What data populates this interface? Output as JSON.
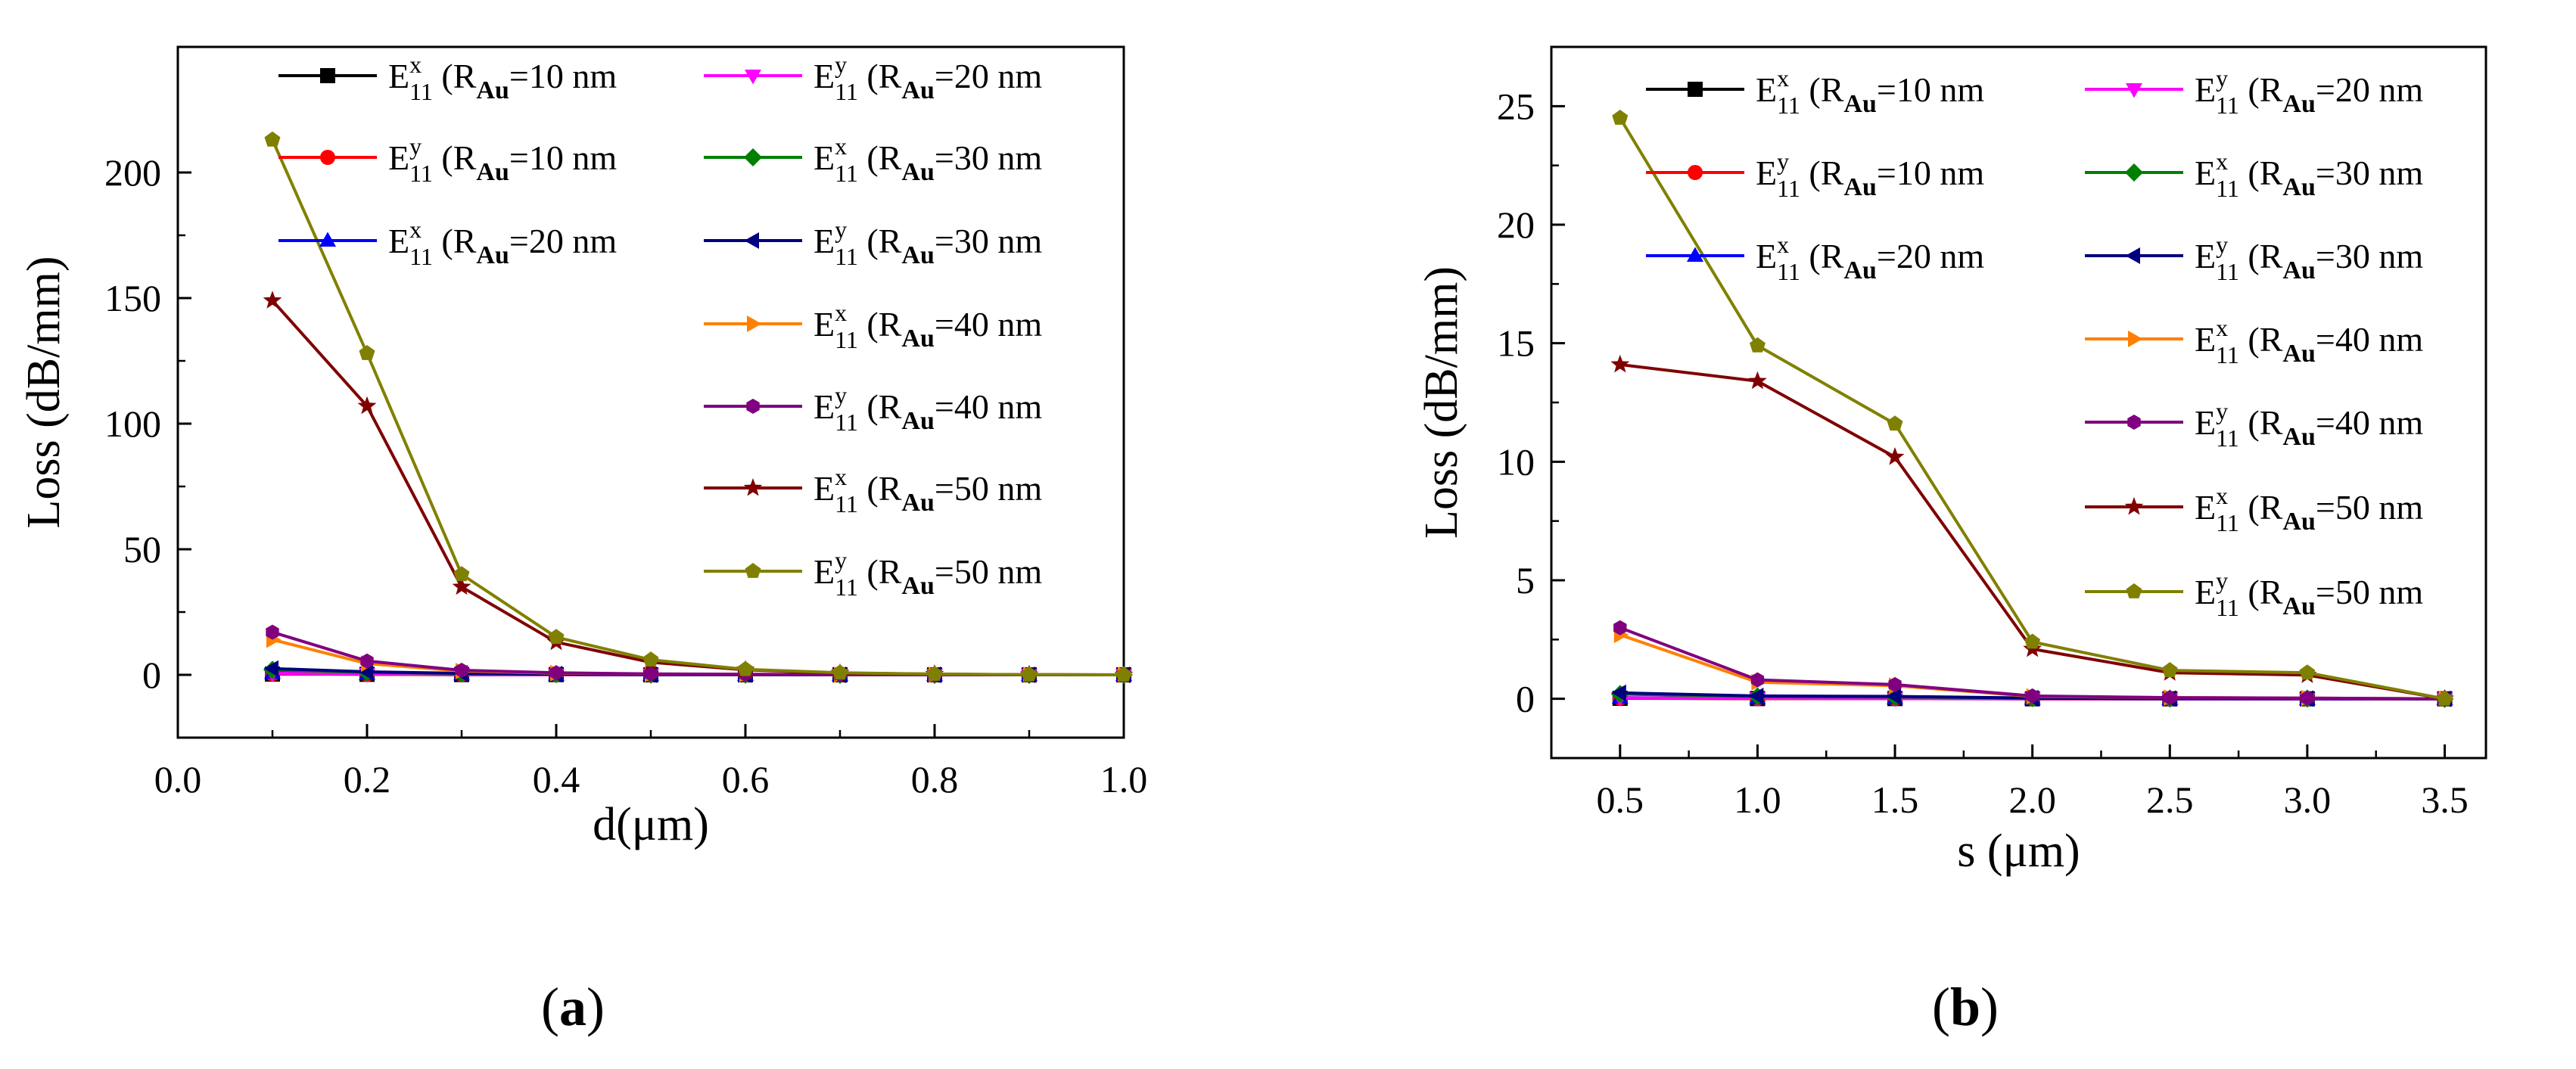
{
  "legend_entries": [
    {
      "mode": "E",
      "sub": "11",
      "pol": "x",
      "r_label": "R",
      "r_sub": "Au",
      "r_value": "=10 nm",
      "color": "#000000",
      "marker": "square"
    },
    {
      "mode": "E",
      "sub": "11",
      "pol": "y",
      "r_label": "R",
      "r_sub": "Au",
      "r_value": "=10 nm",
      "color": "#ff0000",
      "marker": "circle"
    },
    {
      "mode": "E",
      "sub": "11",
      "pol": "x",
      "r_label": "R",
      "r_sub": "Au",
      "r_value": "=20 nm",
      "color": "#0000ff",
      "marker": "triangle-up"
    },
    {
      "mode": "E",
      "sub": "11",
      "pol": "y",
      "r_label": "R",
      "r_sub": "Au",
      "r_value": "=20 nm",
      "color": "#ff00ff",
      "marker": "triangle-down"
    },
    {
      "mode": "E",
      "sub": "11",
      "pol": "x",
      "r_label": "R",
      "r_sub": "Au",
      "r_value": "=30 nm",
      "color": "#008000",
      "marker": "diamond"
    },
    {
      "mode": "E",
      "sub": "11",
      "pol": "y",
      "r_label": "R",
      "r_sub": "Au",
      "r_value": "=30 nm",
      "color": "#000080",
      "marker": "triangle-left"
    },
    {
      "mode": "E",
      "sub": "11",
      "pol": "x",
      "r_label": "R",
      "r_sub": "Au",
      "r_value": "=40 nm",
      "color": "#ff8000",
      "marker": "triangle-right"
    },
    {
      "mode": "E",
      "sub": "11",
      "pol": "y",
      "r_label": "R",
      "r_sub": "Au",
      "r_value": "=40 nm",
      "color": "#800080",
      "marker": "hexagon"
    },
    {
      "mode": "E",
      "sub": "11",
      "pol": "x",
      "r_label": "R",
      "r_sub": "Au",
      "r_value": "=50 nm",
      "color": "#800000",
      "marker": "star"
    },
    {
      "mode": "E",
      "sub": "11",
      "pol": "y",
      "r_label": "R",
      "r_sub": "Au",
      "r_value": "=50 nm",
      "color": "#808000",
      "marker": "pentagon"
    }
  ],
  "panel_labels": {
    "a": "a",
    "b": "b"
  },
  "chart_data": [
    {
      "type": "line",
      "panel": "a",
      "xlabel_main": "d(",
      "xlabel_unit": "μm",
      "xlabel_close": ")",
      "ylabel": "Loss (dB/mm)",
      "xlim": [
        0.0,
        1.0
      ],
      "ylim": [
        -25,
        250
      ],
      "xticks": [
        0.0,
        0.2,
        0.4,
        0.6,
        0.8,
        1.0
      ],
      "xtick_labels": [
        "0.0",
        "0.2",
        "0.4",
        "0.6",
        "0.8",
        "1.0"
      ],
      "yticks": [
        0,
        50,
        100,
        150,
        200
      ],
      "ytick_labels": [
        "0",
        "50",
        "100",
        "150",
        "200"
      ],
      "x": [
        0.1,
        0.2,
        0.3,
        0.4,
        0.5,
        0.6,
        0.7,
        0.8,
        0.9,
        1.0
      ],
      "series": [
        {
          "name": "Ex11 (RAu=10 nm)",
          "values": [
            0.3,
            0.2,
            0.1,
            0.1,
            0,
            0,
            0,
            0,
            0,
            0
          ]
        },
        {
          "name": "Ey11 (RAu=10 nm)",
          "values": [
            0.4,
            0.2,
            0.1,
            0.1,
            0,
            0,
            0,
            0,
            0,
            0
          ]
        },
        {
          "name": "Ex11 (RAu=20 nm)",
          "values": [
            0.8,
            0.4,
            0.2,
            0.1,
            0.1,
            0,
            0,
            0,
            0,
            0
          ]
        },
        {
          "name": "Ey11 (RAu=20 nm)",
          "values": [
            0.6,
            0.3,
            0.2,
            0.1,
            0.1,
            0,
            0,
            0,
            0,
            0
          ]
        },
        {
          "name": "Ex11 (RAu=30 nm)",
          "values": [
            2.0,
            1.0,
            0.5,
            0.3,
            0.1,
            0.1,
            0,
            0,
            0,
            0
          ]
        },
        {
          "name": "Ey11 (RAu=30 nm)",
          "values": [
            2.5,
            1.2,
            0.6,
            0.3,
            0.1,
            0.1,
            0,
            0,
            0,
            0
          ]
        },
        {
          "name": "Ex11 (RAu=40 nm)",
          "values": [
            14,
            4.5,
            1.5,
            0.7,
            0.3,
            0.2,
            0.1,
            0,
            0,
            0
          ]
        },
        {
          "name": "Ey11 (RAu=40 nm)",
          "values": [
            17,
            5.5,
            1.8,
            0.8,
            0.4,
            0.2,
            0.1,
            0,
            0,
            0
          ]
        },
        {
          "name": "Ex11 (RAu=50 nm)",
          "values": [
            149,
            107,
            35,
            13,
            5,
            2,
            0.7,
            0.3,
            0.1,
            0
          ]
        },
        {
          "name": "Ey11 (RAu=50 nm)",
          "values": [
            213,
            128,
            40,
            15,
            6,
            2.2,
            0.8,
            0.3,
            0.1,
            0
          ]
        }
      ]
    },
    {
      "type": "line",
      "panel": "b",
      "xlabel_main": "s (",
      "xlabel_unit": "μm",
      "xlabel_close": ")",
      "ylabel": "Loss (dB/mm)",
      "xlim": [
        0.25,
        3.65
      ],
      "ylim": [
        -2.5,
        27.5
      ],
      "xticks": [
        0.5,
        1.0,
        1.5,
        2.0,
        2.5,
        3.0,
        3.5
      ],
      "xtick_labels": [
        "0.5",
        "1.0",
        "1.5",
        "2.0",
        "2.5",
        "3.0",
        "3.5"
      ],
      "yticks": [
        0,
        5,
        10,
        15,
        20,
        25
      ],
      "ytick_labels": [
        "0",
        "5",
        "10",
        "15",
        "20",
        "25"
      ],
      "x": [
        0.5,
        1.0,
        1.5,
        2.0,
        2.5,
        3.0,
        3.5
      ],
      "series": [
        {
          "name": "Ex11 (RAu=10 nm)",
          "values": [
            0.02,
            0.01,
            0.01,
            0,
            0,
            0,
            0
          ]
        },
        {
          "name": "Ey11 (RAu=10 nm)",
          "values": [
            0.03,
            0.01,
            0.01,
            0,
            0,
            0,
            0
          ]
        },
        {
          "name": "Ex11 (RAu=20 nm)",
          "values": [
            0.05,
            0.02,
            0.02,
            0.01,
            0,
            0,
            0
          ]
        },
        {
          "name": "Ey11 (RAu=20 nm)",
          "values": [
            0.04,
            0.02,
            0.01,
            0.01,
            0,
            0,
            0
          ]
        },
        {
          "name": "Ex11 (RAu=30 nm)",
          "values": [
            0.2,
            0.1,
            0.08,
            0.03,
            0.01,
            0.01,
            0
          ]
        },
        {
          "name": "Ey11 (RAu=30 nm)",
          "values": [
            0.25,
            0.12,
            0.1,
            0.03,
            0.01,
            0.01,
            0
          ]
        },
        {
          "name": "Ex11 (RAu=40 nm)",
          "values": [
            2.7,
            0.7,
            0.55,
            0.1,
            0.05,
            0.03,
            0
          ]
        },
        {
          "name": "Ey11 (RAu=40 nm)",
          "values": [
            3.0,
            0.8,
            0.6,
            0.12,
            0.05,
            0.03,
            0
          ]
        },
        {
          "name": "Ex11 (RAu=50 nm)",
          "values": [
            14.1,
            13.4,
            10.2,
            2.1,
            1.1,
            1.0,
            0
          ]
        },
        {
          "name": "Ey11 (RAu=50 nm)",
          "values": [
            24.5,
            14.9,
            11.6,
            2.4,
            1.2,
            1.1,
            0
          ]
        }
      ]
    }
  ]
}
